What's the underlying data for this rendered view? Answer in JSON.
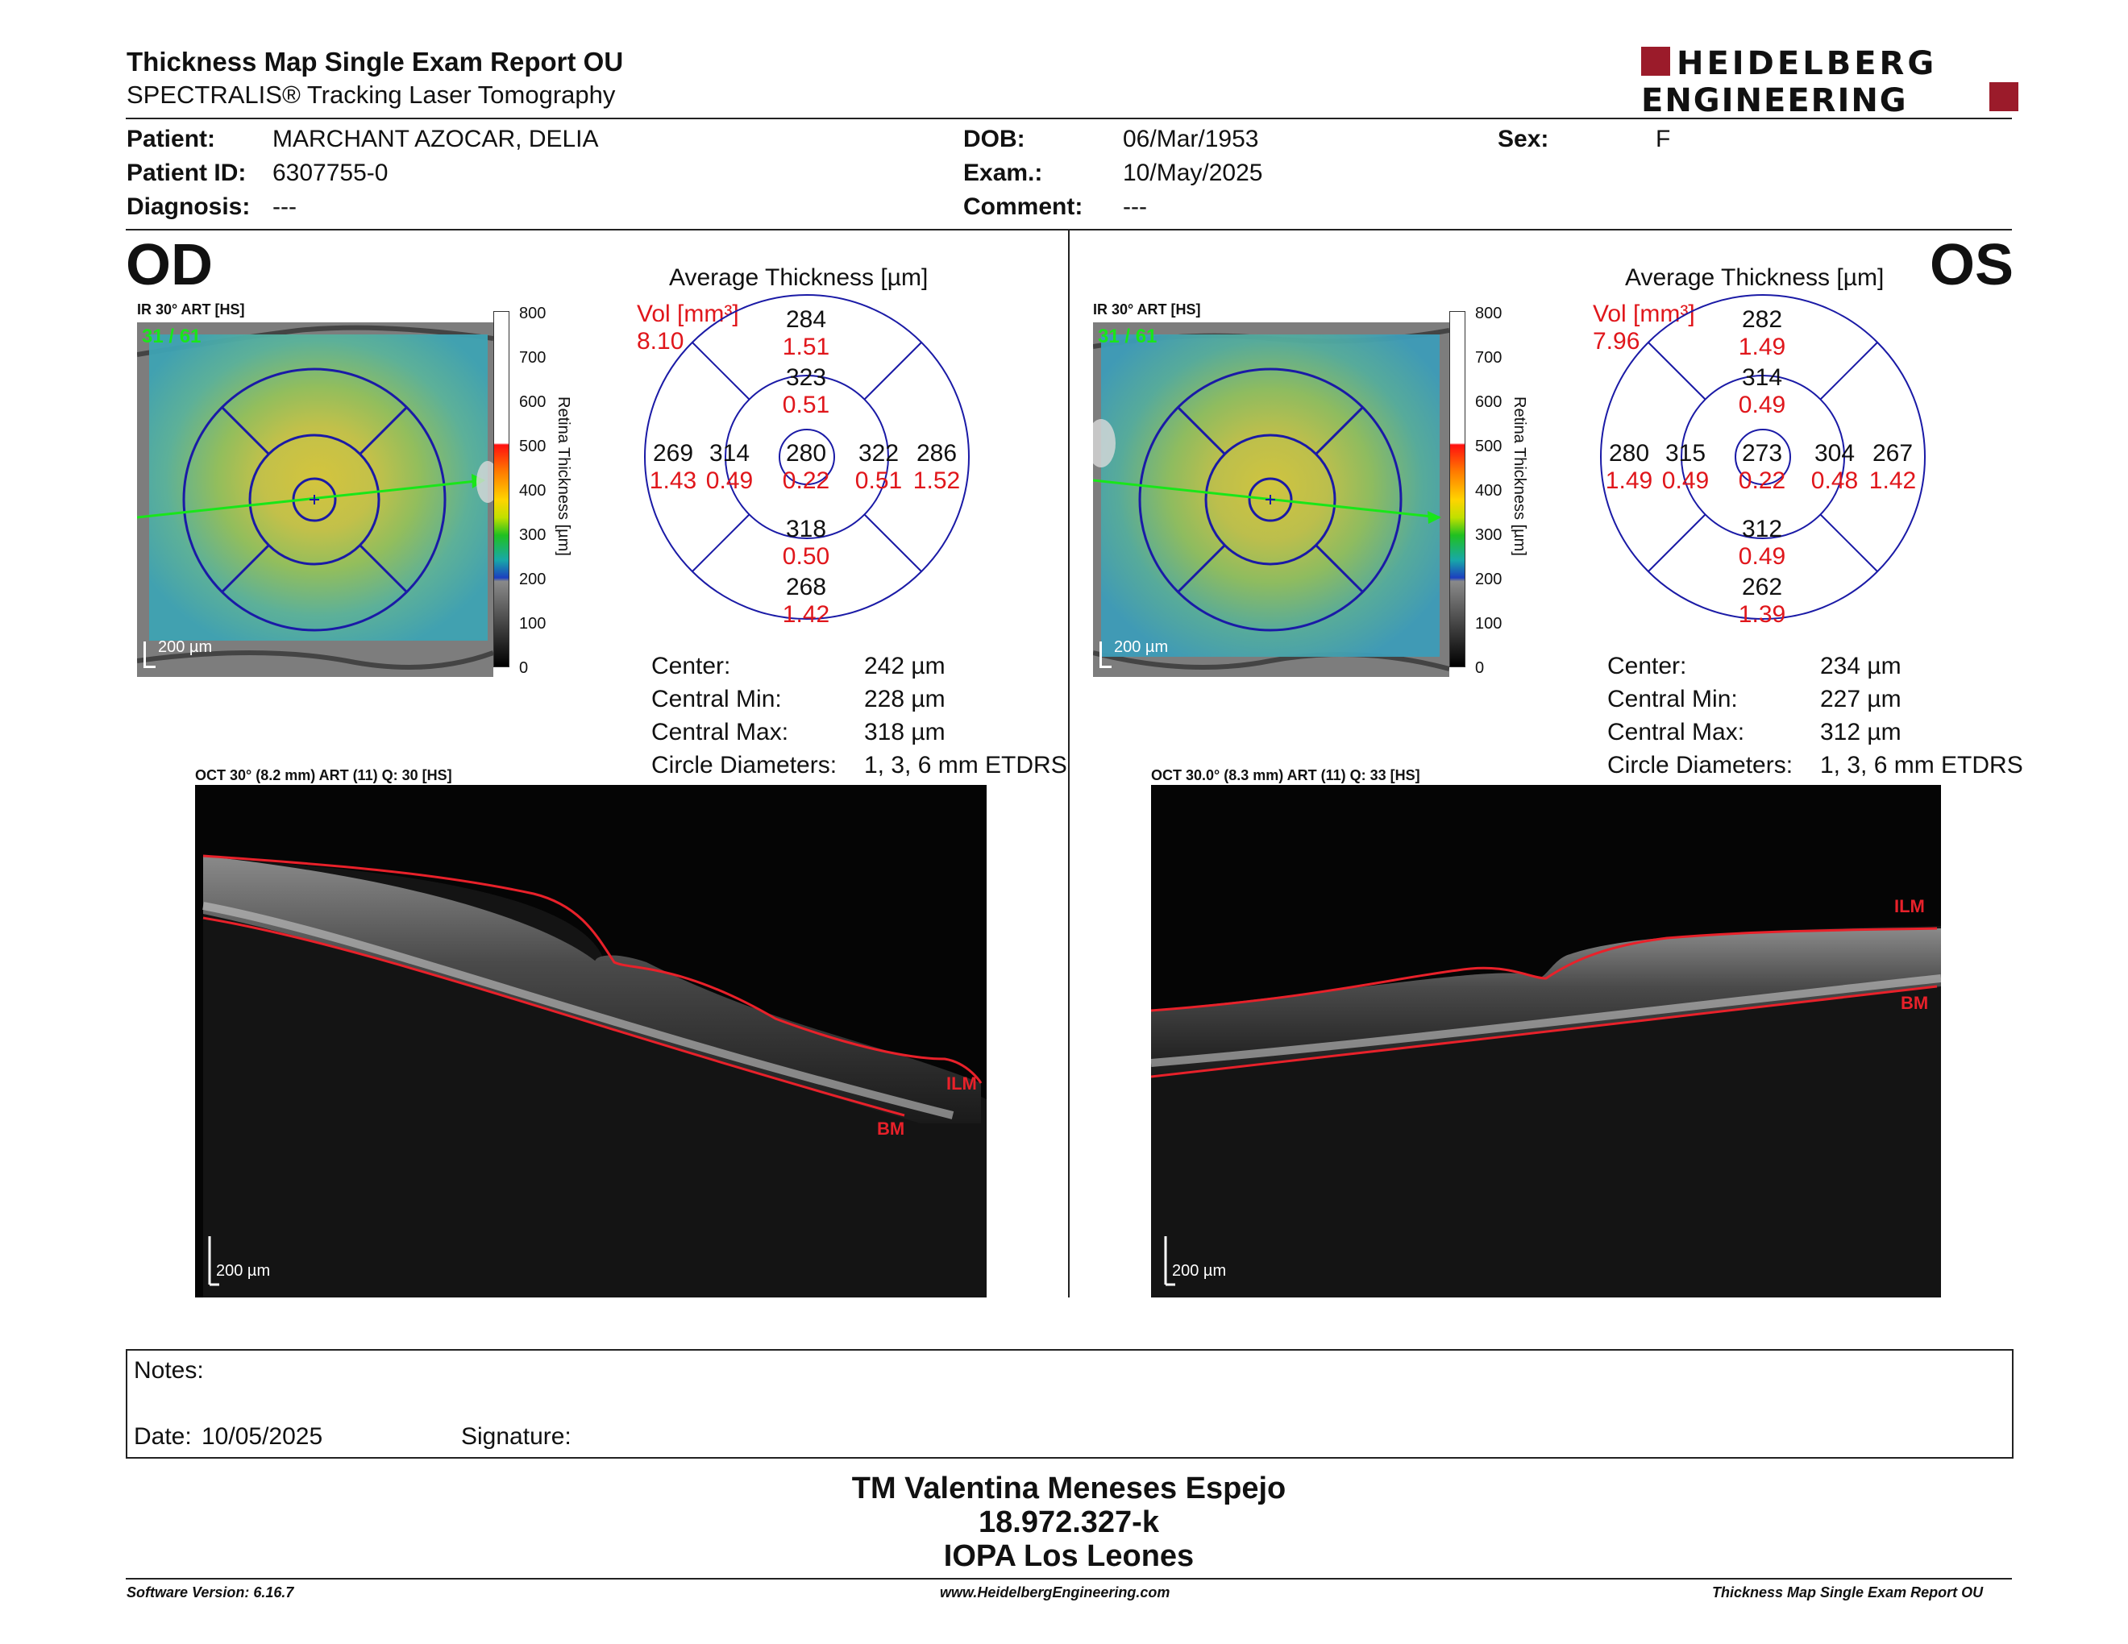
{
  "header": {
    "title": "Thickness Map Single Exam Report OU",
    "subtitle": "SPECTRALIS® Tracking Laser Tomography",
    "logo_line1": "HEIDELBERG",
    "logo_line2": "ENGINEERING"
  },
  "patient": {
    "patient_label": "Patient:",
    "patient_value": "MARCHANT AZOCAR, DELIA",
    "id_label": "Patient ID:",
    "id_value": "6307755-0",
    "diagnosis_label": "Diagnosis:",
    "diagnosis_value": "---",
    "dob_label": "DOB:",
    "dob_value": "06/Mar/1953",
    "exam_label": "Exam.:",
    "exam_value": "10/May/2025",
    "comment_label": "Comment:",
    "comment_value": "---",
    "sex_label": "Sex:",
    "sex_value": "F"
  },
  "od": {
    "eye": "OD",
    "ir_label": "IR 30° ART [HS]",
    "frames": "31 / 61",
    "scale_bar": "200 µm",
    "colorbar_ticks": [
      "800",
      "700",
      "600",
      "500",
      "400",
      "300",
      "200",
      "100",
      "0"
    ],
    "colorbar_label": "Retina Thickness [µm]",
    "avg_title": "Average Thickness [µm]",
    "vol_label": "Vol [mm³]",
    "vol_value": "8.10",
    "sectors": {
      "outer_sup": {
        "t": "284",
        "v": "1.51"
      },
      "inner_sup": {
        "t": "323",
        "v": "0.51"
      },
      "outer_left": {
        "t": "269",
        "v": "1.43"
      },
      "inner_left": {
        "t": "314",
        "v": "0.49"
      },
      "center": {
        "t": "280",
        "v": "0.22"
      },
      "inner_right": {
        "t": "322",
        "v": "0.51"
      },
      "outer_right": {
        "t": "286",
        "v": "1.52"
      },
      "inner_inf": {
        "t": "318",
        "v": "0.50"
      },
      "outer_inf": {
        "t": "268",
        "v": "1.42"
      }
    },
    "stats": [
      {
        "label": "Center:",
        "value": "242 µm"
      },
      {
        "label": "Central Min:",
        "value": "228 µm"
      },
      {
        "label": "Central Max:",
        "value": "318 µm"
      },
      {
        "label": "Circle Diameters:",
        "value": "1, 3, 6 mm ETDRS"
      }
    ],
    "oct_label": "OCT 30° (8.2 mm) ART (11) Q: 30 [HS]",
    "oct_scale": "200 µm",
    "ilm": "ILM",
    "bm": "BM"
  },
  "os": {
    "eye": "OS",
    "ir_label": "IR 30° ART [HS]",
    "frames": "31 / 61",
    "scale_bar": "200 µm",
    "colorbar_ticks": [
      "800",
      "700",
      "600",
      "500",
      "400",
      "300",
      "200",
      "100",
      "0"
    ],
    "colorbar_label": "Retina Thickness [µm]",
    "avg_title": "Average Thickness [µm]",
    "vol_label": "Vol [mm³]",
    "vol_value": "7.96",
    "sectors": {
      "outer_sup": {
        "t": "282",
        "v": "1.49"
      },
      "inner_sup": {
        "t": "314",
        "v": "0.49"
      },
      "outer_left": {
        "t": "280",
        "v": "1.49"
      },
      "inner_left": {
        "t": "315",
        "v": "0.49"
      },
      "center": {
        "t": "273",
        "v": "0.22"
      },
      "inner_right": {
        "t": "304",
        "v": "0.48"
      },
      "outer_right": {
        "t": "267",
        "v": "1.42"
      },
      "inner_inf": {
        "t": "312",
        "v": "0.49"
      },
      "outer_inf": {
        "t": "262",
        "v": "1.39"
      }
    },
    "stats": [
      {
        "label": "Center:",
        "value": "234 µm"
      },
      {
        "label": "Central Min:",
        "value": "227 µm"
      },
      {
        "label": "Central Max:",
        "value": "312 µm"
      },
      {
        "label": "Circle Diameters:",
        "value": "1, 3, 6 mm ETDRS"
      }
    ],
    "oct_label": "OCT 30.0° (8.3 mm) ART (11) Q: 33 [HS]",
    "oct_scale": "200 µm",
    "ilm": "ILM",
    "bm": "BM"
  },
  "notes": {
    "notes_label": "Notes:",
    "date_label": "Date:",
    "date_value": "10/05/2025",
    "signature_label": "Signature:"
  },
  "signer": {
    "line1": "TM Valentina Meneses Espejo",
    "line2": "18.972.327-k",
    "line3": "IOPA Los Leones"
  },
  "footer": {
    "left": "Software Version: 6.16.7",
    "center": "www.HeidelbergEngineering.com",
    "right": "Thickness Map Single Exam Report OU"
  },
  "colors": {
    "accent_red": "#e0161b",
    "etdrs_blue": "#1a1aa6",
    "logo_red": "#9b1b2a",
    "oct_line": "#e8212a",
    "scan_line": "#19e619"
  }
}
